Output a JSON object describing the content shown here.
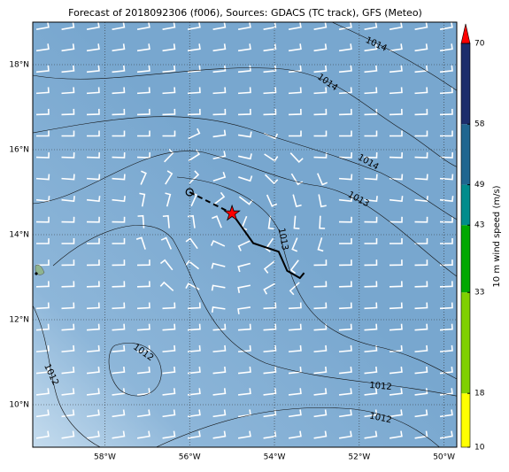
{
  "chart_data": {
    "type": "map",
    "title": "Forecast of 2018092306 (f006), Sources: GDACS (TC track), GFS (Meteo)",
    "xlim": [
      -59.7,
      -49.7
    ],
    "ylim": [
      9.0,
      19.0
    ],
    "xticks": [
      {
        "value": -58,
        "label": "58°W"
      },
      {
        "value": -56,
        "label": "56°W"
      },
      {
        "value": -54,
        "label": "54°W"
      },
      {
        "value": -52,
        "label": "52°W"
      },
      {
        "value": -50,
        "label": "50°W"
      }
    ],
    "yticks": [
      {
        "value": 10,
        "label": "10°N"
      },
      {
        "value": 12,
        "label": "12°N"
      },
      {
        "value": 14,
        "label": "14°N"
      },
      {
        "value": 16,
        "label": "16°N"
      },
      {
        "value": 18,
        "label": "18°N"
      }
    ],
    "grid": true,
    "colorbar": {
      "label": "10 m wind speed (m/s)",
      "levels": [
        10,
        18,
        33,
        43,
        49,
        58,
        70
      ],
      "colors": [
        "#ffff00",
        "#80d000",
        "#00a800",
        "#008c8c",
        "#1f6690",
        "#1c2d6b"
      ],
      "extend_color": "#ff0000"
    },
    "past_track": {
      "color": "#000000",
      "x": [
        -56.0,
        -55.0
      ],
      "y": [
        15.0,
        14.5
      ]
    },
    "forecast_track": {
      "color": "#000000",
      "x": [
        -55.0,
        -54.5,
        -53.9,
        -53.7,
        -53.4,
        -53.3
      ],
      "y": [
        14.5,
        13.8,
        13.6,
        13.15,
        12.98,
        13.1
      ]
    },
    "current_position_color": "#ff0000",
    "contour_labels": [
      1014,
      1014,
      1014,
      1013,
      1013,
      1012,
      1012,
      1012,
      1012
    ]
  }
}
